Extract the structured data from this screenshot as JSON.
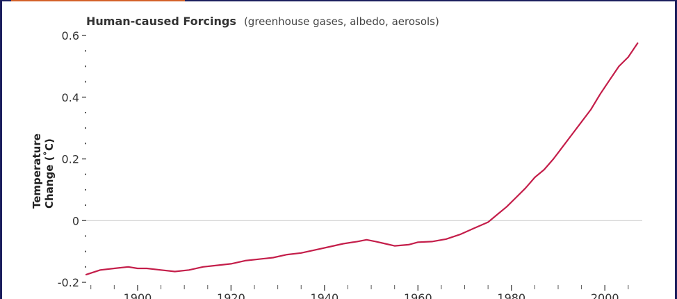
{
  "chart_data": {
    "type": "line",
    "title": "Human-caused Forcings",
    "subtitle": "(greenhouse gases, albedo, aerosols)",
    "ylabel_line1": "Temperature",
    "ylabel_line2": "Change (˚C)",
    "xlabel": "",
    "xlim": [
      1889,
      2008
    ],
    "ylim": [
      -0.2,
      0.6
    ],
    "y_ticks": [
      {
        "value": -0.2,
        "label": "-0.2"
      },
      {
        "value": 0,
        "label": "0"
      },
      {
        "value": 0.2,
        "label": "0.2"
      },
      {
        "value": 0.4,
        "label": "0.4"
      },
      {
        "value": 0.6,
        "label": "0.6"
      }
    ],
    "y_minor_step": 0.05,
    "x_ticks": [
      {
        "value": 1900,
        "label": "1900"
      },
      {
        "value": 1920,
        "label": "1920"
      },
      {
        "value": 1940,
        "label": "1940"
      },
      {
        "value": 1960,
        "label": "1960"
      },
      {
        "value": 1980,
        "label": "1980"
      },
      {
        "value": 2000,
        "label": "2000"
      }
    ],
    "x_minor_step": 5,
    "zero_line": true,
    "grid": false,
    "series": [
      {
        "color": "#c41e4a",
        "x": [
          1889,
          1892,
          1895,
          1898,
          1900,
          1902,
          1905,
          1908,
          1911,
          1914,
          1917,
          1920,
          1923,
          1926,
          1929,
          1932,
          1935,
          1938,
          1941,
          1944,
          1947,
          1949,
          1951,
          1953,
          1955,
          1958,
          1960,
          1963,
          1966,
          1969,
          1972,
          1975,
          1977,
          1979,
          1981,
          1983,
          1985,
          1987,
          1989,
          1991,
          1993,
          1995,
          1997,
          1999,
          2001,
          2003,
          2005,
          2007
        ],
        "y": [
          -0.175,
          -0.16,
          -0.155,
          -0.15,
          -0.155,
          -0.155,
          -0.16,
          -0.165,
          -0.16,
          -0.15,
          -0.145,
          -0.14,
          -0.13,
          -0.125,
          -0.12,
          -0.11,
          -0.105,
          -0.095,
          -0.085,
          -0.075,
          -0.068,
          -0.062,
          -0.068,
          -0.075,
          -0.082,
          -0.078,
          -0.07,
          -0.068,
          -0.06,
          -0.045,
          -0.025,
          -0.005,
          0.02,
          0.045,
          0.075,
          0.105,
          0.14,
          0.165,
          0.2,
          0.24,
          0.28,
          0.32,
          0.36,
          0.41,
          0.455,
          0.5,
          0.53,
          0.575
        ]
      }
    ]
  }
}
